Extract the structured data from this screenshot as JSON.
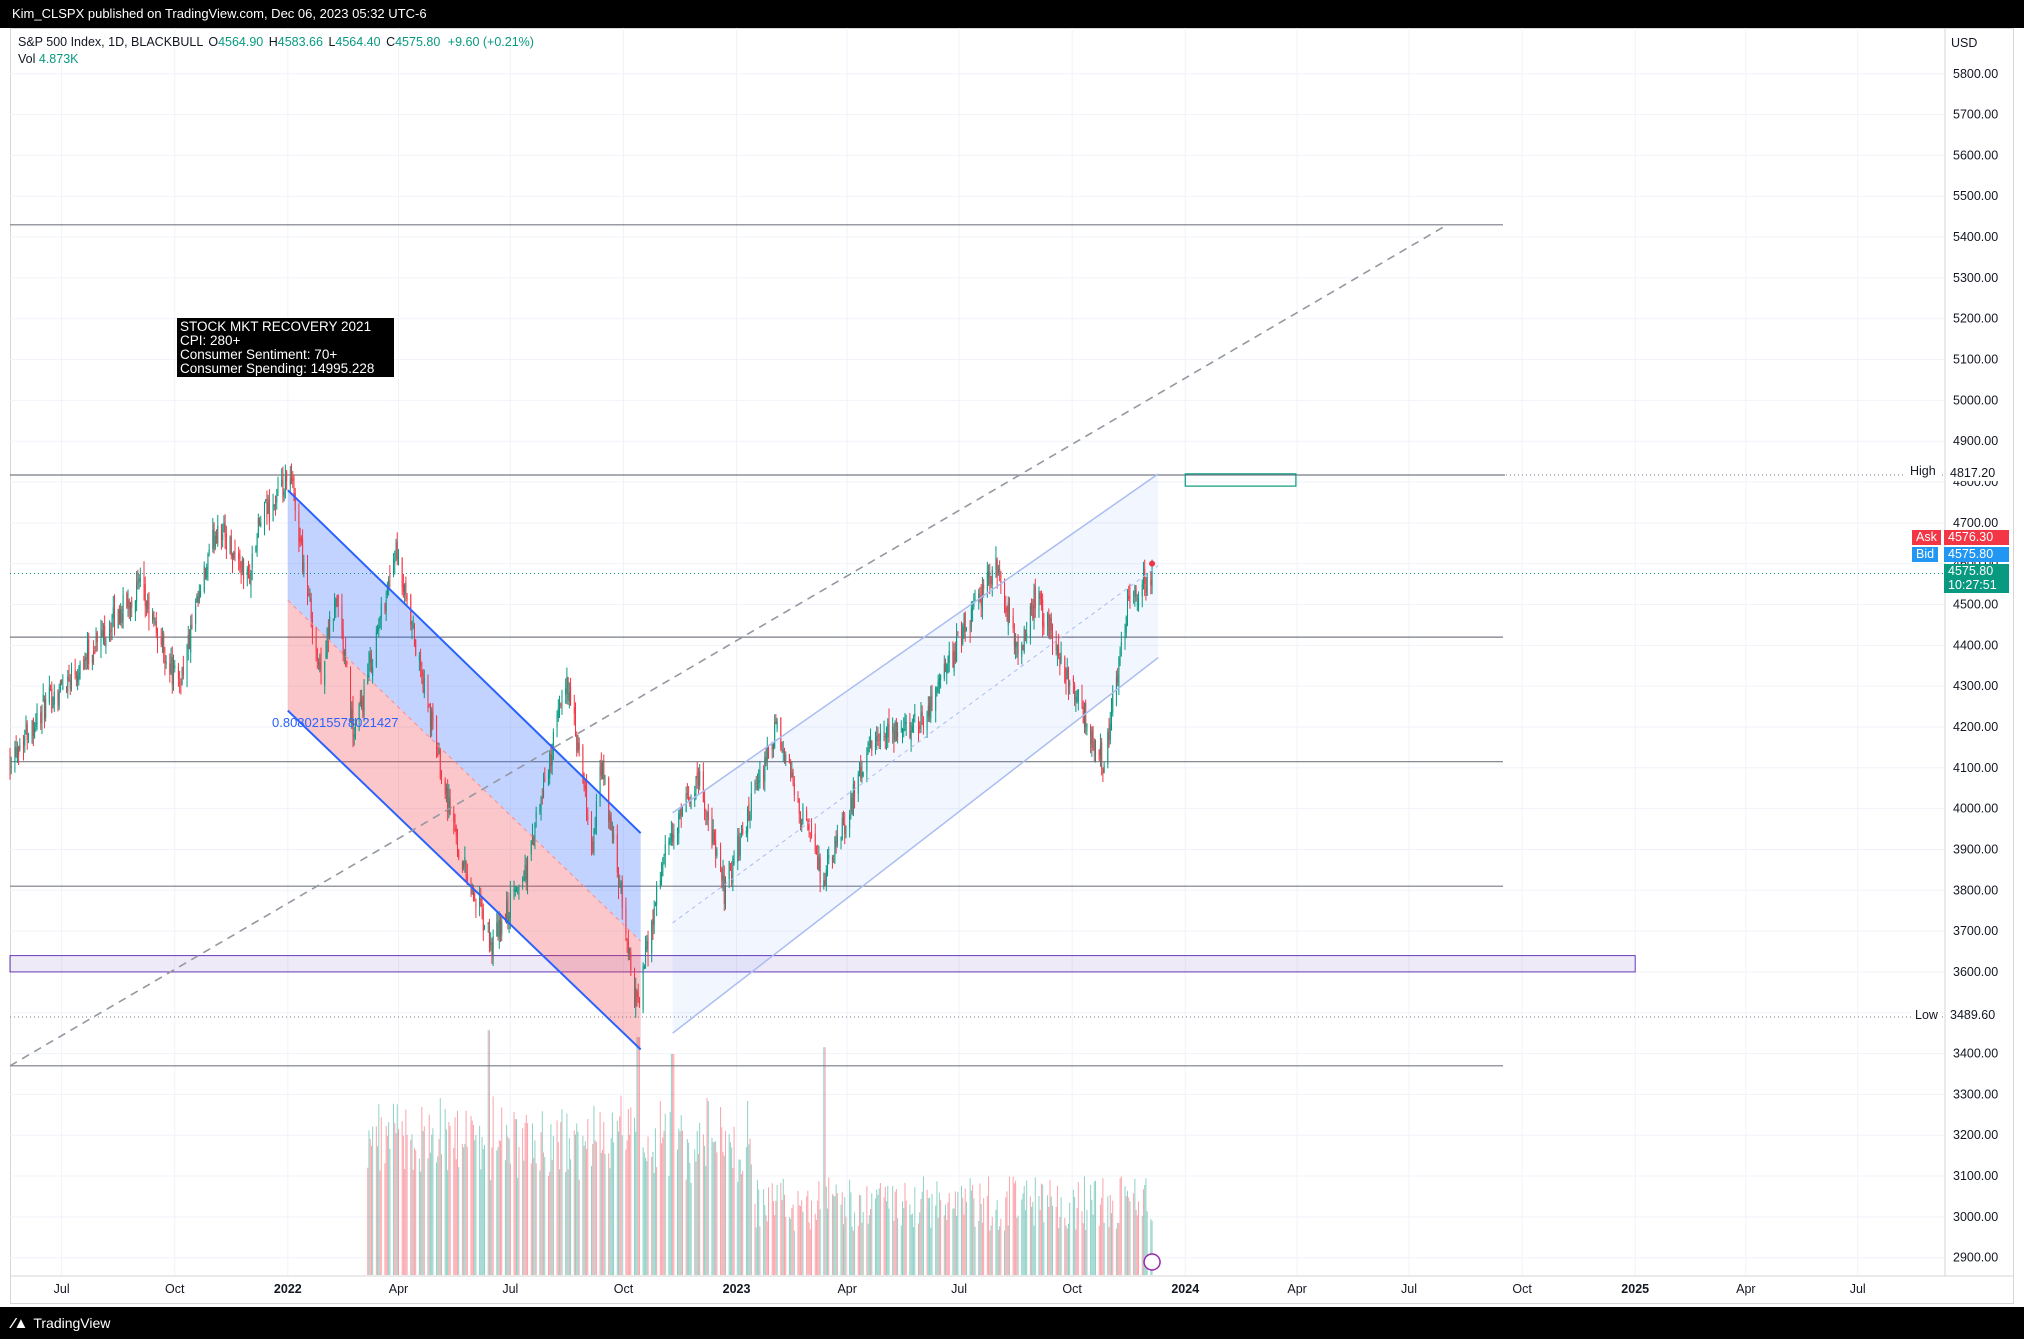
{
  "header": {
    "publish_line": "Kim_CLSPX published on TradingView.com, Dec 06, 2023 05:32 UTC-6"
  },
  "legend": {
    "symbol": "S&P 500 Index, 1D, BLACKBULL",
    "o_label": "O",
    "o_value": "4564.90",
    "h_label": "H",
    "h_value": "4583.66",
    "l_label": "L",
    "l_value": "4564.40",
    "c_label": "C",
    "c_value": "4575.80",
    "change": "+9.60 (+0.21%)",
    "vol_label": "Vol",
    "vol_value": "4.873K"
  },
  "annotation": {
    "line1": "STOCK MKT RECOVERY 2021",
    "line2": "CPI: 280+",
    "line3": "Consumer Sentiment: 70+",
    "line4": "Consumer Spending: 14995.228"
  },
  "fib_label": "0.8080215578021427",
  "price_axis": {
    "currency": "USD",
    "high_label": "High",
    "high_value": "4817.20",
    "ask_label": "Ask",
    "ask_value": "4576.30",
    "bid_label": "Bid",
    "bid_value": "4575.80",
    "last_value": "4575.80",
    "countdown": "10:27:51",
    "low_label": "Low",
    "low_value": "3489.60"
  },
  "footer": {
    "brand": "TradingView"
  },
  "colors": {
    "up": "#089981",
    "down": "#f23645",
    "channel_blue": "#2962ff",
    "channel_light": "#aabdf0",
    "ask": "#f23645",
    "bid": "#2196f3",
    "last": "#089981"
  },
  "chart_data": {
    "type": "candlestick",
    "title": "",
    "y_axis": {
      "min": 2850,
      "max": 5900,
      "ticks": [
        2900,
        3000,
        3100,
        3200,
        3300,
        3400,
        3500,
        3600,
        3700,
        3800,
        3900,
        4000,
        4100,
        4200,
        4300,
        4400,
        4500,
        4600,
        4700,
        4800,
        4900,
        5000,
        5100,
        5200,
        5300,
        5400,
        5500,
        5600,
        5700,
        5800
      ],
      "tick_labels": [
        "2900.00",
        "3000.00",
        "3100.00",
        "3200.00",
        "3300.00",
        "3400.00",
        "3500.00",
        "3600.00",
        "3700.00",
        "3800.00",
        "3900.00",
        "4000.00",
        "4100.00",
        "4200.00",
        "4300.00",
        "4400.00",
        "4500.00",
        "4600.00",
        "4700.00",
        "4800.00",
        "4900.00",
        "5000.00",
        "5100.00",
        "5200.00",
        "5300.00",
        "5400.00",
        "5500.00",
        "5600.00",
        "5700.00",
        "5800.00"
      ]
    },
    "x_axis": {
      "range": [
        "2021-05-20",
        "2025-09-10"
      ],
      "ticks": [
        "2021-07-01",
        "2021-10-01",
        "2022-01-01",
        "2022-04-01",
        "2022-07-01",
        "2022-10-01",
        "2023-01-01",
        "2023-04-01",
        "2023-07-01",
        "2023-10-01",
        "2024-01-01",
        "2024-04-01",
        "2024-07-01",
        "2024-10-01",
        "2025-01-01",
        "2025-04-01",
        "2025-07-01"
      ],
      "tick_labels": [
        "Jul",
        "Oct",
        "2022",
        "Apr",
        "Jul",
        "Oct",
        "2023",
        "Apr",
        "Jul",
        "Oct",
        "2024",
        "Apr",
        "Jul",
        "Oct",
        "2025",
        "Apr",
        "Jul"
      ],
      "bold_ticks": [
        "2022",
        "2023",
        "2024",
        "2025"
      ]
    },
    "price_path": [
      [
        "2021-05-20",
        4130
      ],
      [
        "2021-06-15",
        4240
      ],
      [
        "2021-07-01",
        4300
      ],
      [
        "2021-08-15",
        4470
      ],
      [
        "2021-09-02",
        4540
      ],
      [
        "2021-10-04",
        4300
      ],
      [
        "2021-11-05",
        4700
      ],
      [
        "2021-11-30",
        4560
      ],
      [
        "2021-12-10",
        4710
      ],
      [
        "2022-01-04",
        4800
      ],
      [
        "2022-01-27",
        4330
      ],
      [
        "2022-02-10",
        4520
      ],
      [
        "2022-02-24",
        4170
      ],
      [
        "2022-03-29",
        4630
      ],
      [
        "2022-05-20",
        3900
      ],
      [
        "2022-06-16",
        3660
      ],
      [
        "2022-07-15",
        3860
      ],
      [
        "2022-08-16",
        4320
      ],
      [
        "2022-09-06",
        3900
      ],
      [
        "2022-09-13",
        4110
      ],
      [
        "2022-10-12",
        3510
      ],
      [
        "2022-11-01",
        3860
      ],
      [
        "2022-12-01",
        4080
      ],
      [
        "2022-12-22",
        3800
      ],
      [
        "2023-02-02",
        4190
      ],
      [
        "2023-03-13",
        3820
      ],
      [
        "2023-04-20",
        4150
      ],
      [
        "2023-06-01",
        4220
      ],
      [
        "2023-07-31",
        4600
      ],
      [
        "2023-08-18",
        4370
      ],
      [
        "2023-09-01",
        4520
      ],
      [
        "2023-10-27",
        4110
      ],
      [
        "2023-11-15",
        4500
      ],
      [
        "2023-12-05",
        4575.8
      ]
    ],
    "volume": {
      "range": [
        "2022-03-07",
        "2023-12-05"
      ],
      "unit": "K",
      "peaks": [
        [
          "2022-06-13",
          7.2
        ],
        [
          "2022-10-13",
          7.0
        ],
        [
          "2022-11-10",
          6.5
        ],
        [
          "2023-03-13",
          6.7
        ]
      ]
    },
    "horizontal_levels": [
      5430,
      4817.2,
      4420,
      4115,
      3810,
      3370
    ],
    "dotted_levels": [
      4817.2,
      4575.8,
      3489.6
    ],
    "zone_box": {
      "y_range": [
        3600,
        3640
      ],
      "x_range": [
        "2021-05-20",
        "2025-01-01"
      ]
    },
    "target_box": {
      "y_range": [
        4790,
        4820
      ],
      "x_range": [
        "2024-01-01",
        "2024-03-31"
      ]
    },
    "trendline_dashed": {
      "from": [
        "2021-05-20",
        3370
      ],
      "to": [
        "2024-08-01",
        5430
      ]
    },
    "descending_channel": {
      "upper": [
        [
          "2022-01-01",
          4780
        ],
        [
          "2022-10-15",
          3940
        ]
      ],
      "lower": [
        [
          "2022-01-01",
          4240
        ],
        [
          "2022-10-15",
          3410
        ]
      ]
    },
    "ascending_channel": {
      "upper": [
        [
          "2022-11-10",
          3990
        ],
        [
          "2023-12-10",
          4820
        ]
      ],
      "lower": [
        [
          "2022-11-10",
          3450
        ],
        [
          "2023-12-10",
          4370
        ]
      ]
    }
  }
}
